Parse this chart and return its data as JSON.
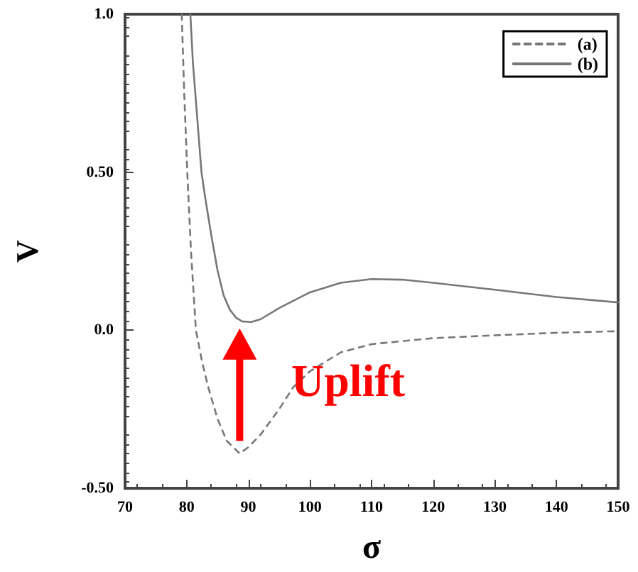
{
  "chart_data": {
    "type": "line",
    "xlabel": "σ",
    "ylabel": "V",
    "xlim": [
      70,
      150
    ],
    "xticks": [
      70,
      80,
      90,
      100,
      110,
      120,
      130,
      140,
      150
    ],
    "ylim": [
      -0.5,
      1.0
    ],
    "yticks": [
      {
        "value": -0.5,
        "label": "-0.50"
      },
      {
        "value": 0,
        "label": "0.0"
      },
      {
        "value": 0.5,
        "label": "0.50"
      },
      {
        "value": 1.0,
        "label": "1.0"
      }
    ],
    "grid": false,
    "legend": "top right",
    "marker": "none",
    "annotations": [
      "Uplift"
    ],
    "series": [
      {
        "name": "(a)",
        "color": "#777777",
        "line_style": "dashed",
        "x": [
          79.2,
          79.6,
          80.1,
          80.7,
          81.5,
          82.5,
          83.5,
          85,
          86.5,
          88.6,
          90,
          92,
          95,
          97.3,
          100,
          105,
          110,
          120,
          130,
          140,
          150
        ],
        "values": [
          1.0,
          0.75,
          0.5,
          0.25,
          0,
          -0.1,
          -0.18,
          -0.28,
          -0.35,
          -0.39,
          -0.37,
          -0.33,
          -0.25,
          -0.18,
          -0.13,
          -0.07,
          -0.044,
          -0.025,
          -0.016,
          -0.008,
          -0.003
        ]
      },
      {
        "name": "(b)",
        "color": "#777777",
        "line_style": "solid",
        "x": [
          80.6,
          81,
          82.4,
          83,
          84,
          85,
          86,
          87,
          88,
          89,
          90.5,
          92,
          95,
          100,
          105,
          110,
          115,
          120,
          130,
          140,
          150
        ],
        "values": [
          1.0,
          0.85,
          0.5,
          0.42,
          0.3,
          0.19,
          0.11,
          0.065,
          0.04,
          0.028,
          0.026,
          0.035,
          0.07,
          0.12,
          0.15,
          0.162,
          0.16,
          0.15,
          0.128,
          0.105,
          0.088
        ]
      }
    ]
  }
}
